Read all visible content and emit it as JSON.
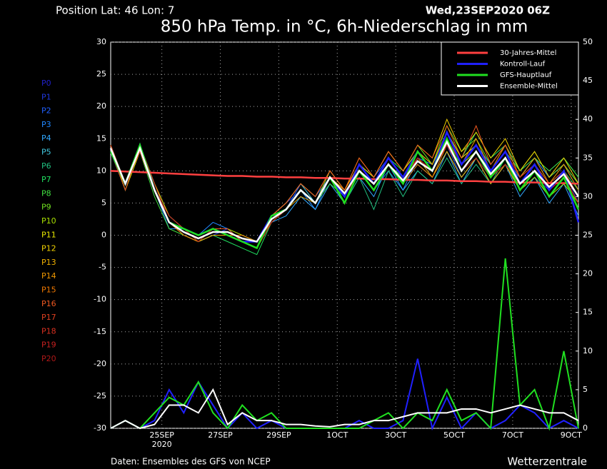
{
  "chart_data": {
    "type": "line",
    "header_left": "Position   Lat: 46 Lon: 7",
    "header_right": "Wed,23SEP2020 06Z",
    "title": "850 hPa Temp. in °C, 6h-Niederschlag in mm",
    "source": "Daten: Ensembles des GFS von NCEP",
    "brand": "Wetterzentrale",
    "x_sublabel": "2020",
    "x": [
      0.25,
      0.75,
      1.25,
      1.75,
      2.25,
      2.75,
      3.25,
      3.75,
      4.25,
      4.75,
      5.25,
      5.75,
      6.25,
      6.75,
      7.25,
      7.75,
      8.25,
      8.75,
      9.25,
      9.75,
      10.25,
      10.75,
      11.25,
      11.75,
      12.25,
      12.75,
      13.25,
      13.75,
      14.25,
      14.75,
      15.25,
      15.75,
      16.25
    ],
    "xlim": [
      0.25,
      16.25
    ],
    "xticks": [
      {
        "value": 2,
        "label": "25SEP"
      },
      {
        "value": 4,
        "label": "27SEP"
      },
      {
        "value": 6,
        "label": "29SEP"
      },
      {
        "value": 8,
        "label": "1OCT"
      },
      {
        "value": 10,
        "label": "3OCT"
      },
      {
        "value": 12,
        "label": "5OCT"
      },
      {
        "value": 14,
        "label": "7OCT"
      },
      {
        "value": 16,
        "label": "9OCT"
      }
    ],
    "ylim": [
      -30,
      30
    ],
    "yticks": [
      -30,
      -25,
      -20,
      -15,
      -10,
      -5,
      0,
      5,
      10,
      15,
      20,
      25,
      30
    ],
    "y2lim": [
      0,
      50
    ],
    "y2ticks": [
      0,
      5,
      10,
      15,
      20,
      25,
      30,
      35,
      40,
      45,
      50
    ],
    "grid": true,
    "members": [
      {
        "name": "P0",
        "color": "#2020c8",
        "values": [
          13,
          8,
          14,
          7,
          2,
          1,
          0,
          1,
          0,
          -1,
          -1,
          3,
          4,
          7,
          5,
          9,
          6,
          10,
          8,
          11,
          8,
          12,
          10,
          15,
          11,
          13,
          9,
          12,
          7,
          9,
          7,
          10,
          5
        ]
      },
      {
        "name": "P1",
        "color": "#2038e0",
        "values": [
          13,
          8,
          14,
          7,
          3,
          1,
          -1,
          0,
          1,
          -1,
          -2,
          3,
          5,
          7,
          5,
          10,
          7,
          11,
          8,
          12,
          9,
          13,
          11,
          16,
          12,
          14,
          10,
          13,
          8,
          11,
          8,
          10,
          6
        ]
      },
      {
        "name": "P2",
        "color": "#2060ff",
        "values": [
          14,
          8,
          13,
          8,
          2,
          0,
          -1,
          1,
          0,
          0,
          -1,
          2,
          4,
          8,
          6,
          9,
          6,
          11,
          9,
          12,
          9,
          12,
          10,
          14,
          9,
          12,
          8,
          11,
          9,
          12,
          9,
          11,
          7
        ]
      },
      {
        "name": "P3",
        "color": "#2088ff",
        "values": [
          13,
          7,
          14,
          7,
          1,
          1,
          0,
          2,
          1,
          -1,
          -2,
          3,
          4,
          7,
          4,
          9,
          5,
          10,
          7,
          10,
          7,
          12,
          11,
          15,
          11,
          14,
          11,
          14,
          10,
          12,
          9,
          11,
          8
        ]
      },
      {
        "name": "P4",
        "color": "#30a8ff",
        "values": [
          13,
          8,
          14,
          7,
          2,
          0,
          -1,
          0,
          0,
          -1,
          -1,
          2,
          3,
          6,
          4,
          8,
          5,
          9,
          6,
          11,
          7,
          10,
          8,
          13,
          8,
          12,
          9,
          11,
          6,
          9,
          5,
          8,
          3
        ]
      },
      {
        "name": "P5",
        "color": "#40c8e0",
        "values": [
          14,
          8,
          13,
          7,
          2,
          1,
          0,
          1,
          0,
          0,
          -1,
          3,
          5,
          8,
          5,
          9,
          6,
          10,
          7,
          11,
          8,
          11,
          9,
          13,
          9,
          12,
          8,
          11,
          7,
          9,
          6,
          9,
          4
        ]
      },
      {
        "name": "P6",
        "color": "#20c080",
        "values": [
          13,
          8,
          14,
          8,
          3,
          1,
          -1,
          1,
          1,
          -1,
          -2,
          3,
          4,
          7,
          5,
          9,
          5,
          9,
          4,
          10,
          6,
          10,
          8,
          12,
          8,
          11,
          8,
          12,
          9,
          12,
          10,
          12,
          9
        ]
      },
      {
        "name": "P7",
        "color": "#20e060",
        "values": [
          13,
          7,
          14,
          7,
          2,
          1,
          -1,
          0,
          -1,
          -2,
          -3,
          2,
          4,
          7,
          5,
          9,
          6,
          10,
          8,
          12,
          10,
          13,
          11,
          16,
          12,
          16,
          12,
          14,
          9,
          11,
          8,
          10,
          7
        ]
      },
      {
        "name": "P8",
        "color": "#40e040",
        "values": [
          14,
          8,
          13,
          6,
          1,
          0,
          -1,
          1,
          0,
          0,
          -1,
          3,
          4,
          7,
          5,
          8,
          6,
          10,
          8,
          11,
          9,
          12,
          10,
          14,
          11,
          13,
          10,
          13,
          10,
          12,
          10,
          12,
          9
        ]
      },
      {
        "name": "P9",
        "color": "#70e020",
        "values": [
          13,
          8,
          14,
          7,
          2,
          1,
          0,
          1,
          0,
          -1,
          -2,
          2,
          4,
          7,
          5,
          9,
          7,
          11,
          9,
          13,
          10,
          14,
          11,
          17,
          13,
          15,
          11,
          14,
          10,
          13,
          9,
          11,
          8
        ]
      },
      {
        "name": "P10",
        "color": "#a8e000",
        "values": [
          13,
          8,
          14,
          7,
          2,
          1,
          0,
          1,
          1,
          0,
          -1,
          3,
          4,
          7,
          5,
          10,
          7,
          11,
          8,
          12,
          9,
          12,
          10,
          15,
          11,
          13,
          9,
          11,
          7,
          9,
          6,
          8,
          5
        ]
      },
      {
        "name": "P11",
        "color": "#e8e800",
        "values": [
          14,
          7,
          13,
          7,
          2,
          0,
          -1,
          1,
          0,
          -1,
          -2,
          3,
          5,
          8,
          6,
          10,
          7,
          11,
          9,
          13,
          10,
          13,
          11,
          16,
          12,
          14,
          10,
          13,
          8,
          11,
          8,
          10,
          6
        ]
      },
      {
        "name": "P12",
        "color": "#f0d000",
        "values": [
          13,
          8,
          14,
          8,
          3,
          1,
          0,
          1,
          0,
          -1,
          -2,
          2,
          4,
          7,
          5,
          9,
          7,
          12,
          9,
          13,
          10,
          14,
          12,
          18,
          13,
          16,
          12,
          15,
          10,
          13,
          9,
          12,
          8
        ]
      },
      {
        "name": "P13",
        "color": "#f0b000",
        "values": [
          13,
          8,
          14,
          7,
          2,
          1,
          -1,
          0,
          0,
          -1,
          -2,
          3,
          4,
          6,
          5,
          9,
          6,
          10,
          7,
          11,
          8,
          12,
          9,
          13,
          9,
          12,
          8,
          11,
          7,
          10,
          7,
          9,
          5
        ]
      },
      {
        "name": "P14",
        "color": "#f09800",
        "values": [
          14,
          8,
          13,
          7,
          2,
          1,
          0,
          1,
          0,
          -1,
          -1,
          3,
          4,
          7,
          5,
          9,
          7,
          11,
          8,
          12,
          9,
          13,
          11,
          16,
          11,
          15,
          10,
          14,
          9,
          12,
          8,
          11,
          7
        ]
      },
      {
        "name": "P15",
        "color": "#f07800",
        "values": [
          13,
          8,
          14,
          7,
          2,
          0,
          -1,
          1,
          0,
          0,
          -1,
          2,
          4,
          7,
          5,
          9,
          6,
          10,
          7,
          11,
          8,
          11,
          9,
          14,
          10,
          13,
          9,
          12,
          8,
          11,
          7,
          10,
          6
        ]
      },
      {
        "name": "P16",
        "color": "#f05820",
        "values": [
          13,
          8,
          14,
          7,
          2,
          1,
          0,
          1,
          1,
          -1,
          -2,
          3,
          5,
          8,
          6,
          10,
          7,
          12,
          9,
          13,
          10,
          14,
          12,
          17,
          12,
          17,
          11,
          14,
          9,
          11,
          7,
          9,
          4
        ]
      },
      {
        "name": "P17",
        "color": "#e04020",
        "values": [
          13,
          7,
          14,
          8,
          2,
          1,
          0,
          1,
          0,
          -1,
          -2,
          3,
          4,
          7,
          5,
          9,
          6,
          10,
          8,
          11,
          8,
          12,
          10,
          14,
          10,
          13,
          9,
          12,
          8,
          10,
          7,
          9,
          6
        ]
      },
      {
        "name": "P18",
        "color": "#d83020",
        "values": [
          14,
          8,
          13,
          7,
          2,
          1,
          0,
          1,
          0,
          -1,
          -1,
          3,
          4,
          7,
          5,
          9,
          6,
          11,
          8,
          12,
          9,
          12,
          10,
          15,
          11,
          14,
          10,
          13,
          9,
          11,
          8,
          10,
          6
        ]
      },
      {
        "name": "P19",
        "color": "#c82020",
        "values": [
          13,
          8,
          14,
          7,
          3,
          1,
          0,
          1,
          0,
          -1,
          -2,
          2,
          4,
          7,
          5,
          9,
          6,
          10,
          7,
          11,
          8,
          12,
          10,
          15,
          10,
          13,
          9,
          12,
          8,
          10,
          6,
          9,
          5
        ]
      },
      {
        "name": "P20",
        "color": "#b01818",
        "values": [
          13,
          8,
          14,
          7,
          2,
          1,
          -1,
          1,
          0,
          -1,
          -2,
          3,
          4,
          7,
          5,
          9,
          6,
          10,
          8,
          12,
          9,
          12,
          10,
          14,
          10,
          12,
          9,
          11,
          8,
          10,
          7,
          9,
          6
        ]
      }
    ],
    "series": [
      {
        "name": "30-Jahres-Mittel",
        "color": "#ff4040",
        "values": [
          10,
          9.9,
          9.8,
          9.7,
          9.6,
          9.5,
          9.4,
          9.3,
          9.2,
          9.2,
          9.1,
          9.1,
          9,
          9,
          8.9,
          8.9,
          8.8,
          8.8,
          8.7,
          8.7,
          8.6,
          8.6,
          8.5,
          8.5,
          8.4,
          8.4,
          8.3,
          8.3,
          8.2,
          8.2,
          8.1,
          8.1,
          8
        ]
      },
      {
        "name": "Kontroll-Lauf",
        "color": "#2020ff",
        "values": [
          13,
          8,
          14,
          7,
          2,
          1,
          0,
          1,
          0,
          -1,
          -1,
          3,
          4,
          7,
          5,
          9,
          6,
          11,
          8,
          12,
          9,
          13,
          10,
          16,
          11,
          14,
          10,
          13,
          8,
          11,
          7,
          10,
          2
        ]
      },
      {
        "name": "GFS-Hauptlauf",
        "color": "#20e020",
        "values": [
          13,
          8,
          14,
          7,
          2,
          1,
          0,
          1,
          0,
          -1,
          -2,
          3,
          4,
          7,
          5,
          9,
          5,
          10,
          7,
          11,
          8,
          13,
          10,
          15,
          10,
          13,
          9,
          12,
          7,
          10,
          6,
          9,
          4
        ]
      },
      {
        "name": "Ensemble-Mittel",
        "color": "#ffffff",
        "values": [
          13.5,
          8,
          13.5,
          7,
          2,
          0.5,
          -0.5,
          0.5,
          0.5,
          -0.5,
          -1,
          2.5,
          4,
          7,
          5,
          9,
          6.5,
          10,
          8,
          11,
          8.5,
          11.5,
          10,
          14.5,
          10,
          13,
          9.5,
          12,
          8,
          10,
          7.5,
          9.5,
          6
        ]
      }
    ],
    "precip_series": [
      {
        "color": "#2020ff",
        "axis": "y2",
        "values": [
          0,
          1,
          0,
          1,
          5,
          2,
          6,
          3,
          0,
          2,
          0,
          1,
          0,
          0,
          0,
          0,
          0,
          1,
          0,
          0,
          1,
          9,
          0,
          4,
          0,
          2,
          0,
          1,
          3,
          2,
          0,
          1,
          0
        ]
      },
      {
        "color": "#20e020",
        "axis": "y2",
        "values": [
          0,
          1,
          0,
          2,
          4,
          3,
          6,
          2,
          0,
          3,
          1,
          2,
          0,
          0,
          0,
          0,
          0,
          0,
          1,
          2,
          0,
          2,
          1,
          5,
          1,
          2,
          0,
          22,
          3,
          5,
          0,
          10,
          0
        ]
      },
      {
        "color": "#ffffff",
        "axis": "y2",
        "values": [
          0,
          1,
          0,
          0.5,
          3,
          3,
          2,
          5,
          0.5,
          2,
          1,
          1,
          0.5,
          0.5,
          0.3,
          0.2,
          0.5,
          0.5,
          1,
          1,
          1.5,
          2,
          2,
          2,
          2.5,
          2.5,
          2,
          2.5,
          3,
          2.5,
          2,
          2,
          1
        ]
      }
    ]
  }
}
